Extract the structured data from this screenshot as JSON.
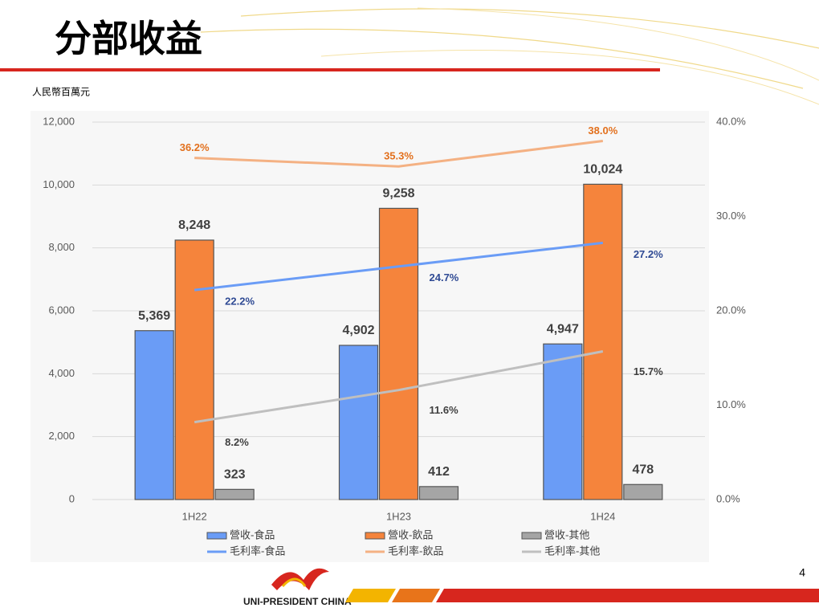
{
  "title": "分部收益",
  "unit_label": "人民幣百萬元",
  "page_number": "4",
  "logo_text": "UNI-PRESIDENT CHINA",
  "chart_data": {
    "type": "bar",
    "categories": [
      "1H22",
      "1H23",
      "1H24"
    ],
    "ylim": [
      0,
      12000
    ],
    "yticks": [
      0,
      {
        "value": 2000,
        "label": "2,000"
      },
      {
        "value": 4000,
        "label": "4,000"
      },
      {
        "value": 6000,
        "label": "6,000"
      },
      {
        "value": 8000,
        "label": "8,000"
      },
      {
        "value": 10000,
        "label": "10,000"
      },
      {
        "value": 12000,
        "label": "12,000"
      }
    ],
    "y2lim": [
      0,
      40
    ],
    "y2ticks": [
      {
        "value": 0,
        "label": "0.0%"
      },
      {
        "value": 10,
        "label": "10.0%"
      },
      {
        "value": 20,
        "label": "20.0%"
      },
      {
        "value": 30,
        "label": "30.0%"
      },
      {
        "value": 40,
        "label": "40.0%"
      }
    ],
    "grid": true,
    "legend": "bottom",
    "series": [
      {
        "name": "營收-食品",
        "type": "bar",
        "color": "#6a9cf6",
        "values": [
          5369,
          4902,
          4947
        ],
        "value_labels": [
          "5,369",
          "4,902",
          "4,947"
        ]
      },
      {
        "name": "營收-飲品",
        "type": "bar",
        "color": "#f5843c",
        "values": [
          8248,
          9258,
          10024
        ],
        "value_labels": [
          "8,248",
          "9,258",
          "10,024"
        ]
      },
      {
        "name": "營收-其他",
        "type": "bar",
        "color": "#a5a5a5",
        "values": [
          323,
          412,
          478
        ],
        "value_labels": [
          "323",
          "412",
          "478"
        ]
      },
      {
        "name": "毛利率-食品",
        "type": "line",
        "axis": "y2",
        "color": "#6a9cf6",
        "label_color": "#2f4a94",
        "values": [
          22.2,
          24.7,
          27.2
        ],
        "value_labels": [
          "22.2%",
          "24.7%",
          "27.2%"
        ]
      },
      {
        "name": "毛利率-飲品",
        "type": "line",
        "axis": "y2",
        "color": "#f4b183",
        "label_color": "#e2701d",
        "values": [
          36.2,
          35.3,
          38.0
        ],
        "value_labels": [
          "36.2%",
          "35.3%",
          "38.0%"
        ]
      },
      {
        "name": "毛利率-其他",
        "type": "line",
        "axis": "y2",
        "color": "#bfbfbf",
        "label_color": "#404040",
        "values": [
          8.2,
          11.6,
          15.7
        ],
        "value_labels": [
          "8.2%",
          "11.6%",
          "15.7%"
        ]
      }
    ]
  }
}
